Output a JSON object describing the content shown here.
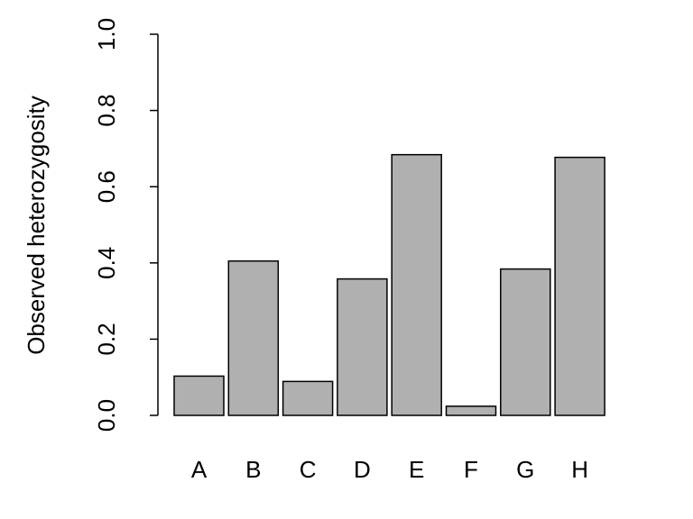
{
  "chart_data": {
    "type": "bar",
    "title": "",
    "xlabel": "",
    "ylabel": "Observed heterozygosity",
    "categories": [
      "A",
      "B",
      "C",
      "D",
      "E",
      "F",
      "G",
      "H"
    ],
    "values": [
      0.103,
      0.405,
      0.089,
      0.358,
      0.684,
      0.024,
      0.384,
      0.677
    ],
    "ylim": [
      0,
      1
    ],
    "yticks": [
      "0.0",
      "0.2",
      "0.4",
      "0.6",
      "0.8",
      "1.0"
    ],
    "bar_color": "#b0b0b0",
    "border_color": "#000000",
    "grid": false
  }
}
